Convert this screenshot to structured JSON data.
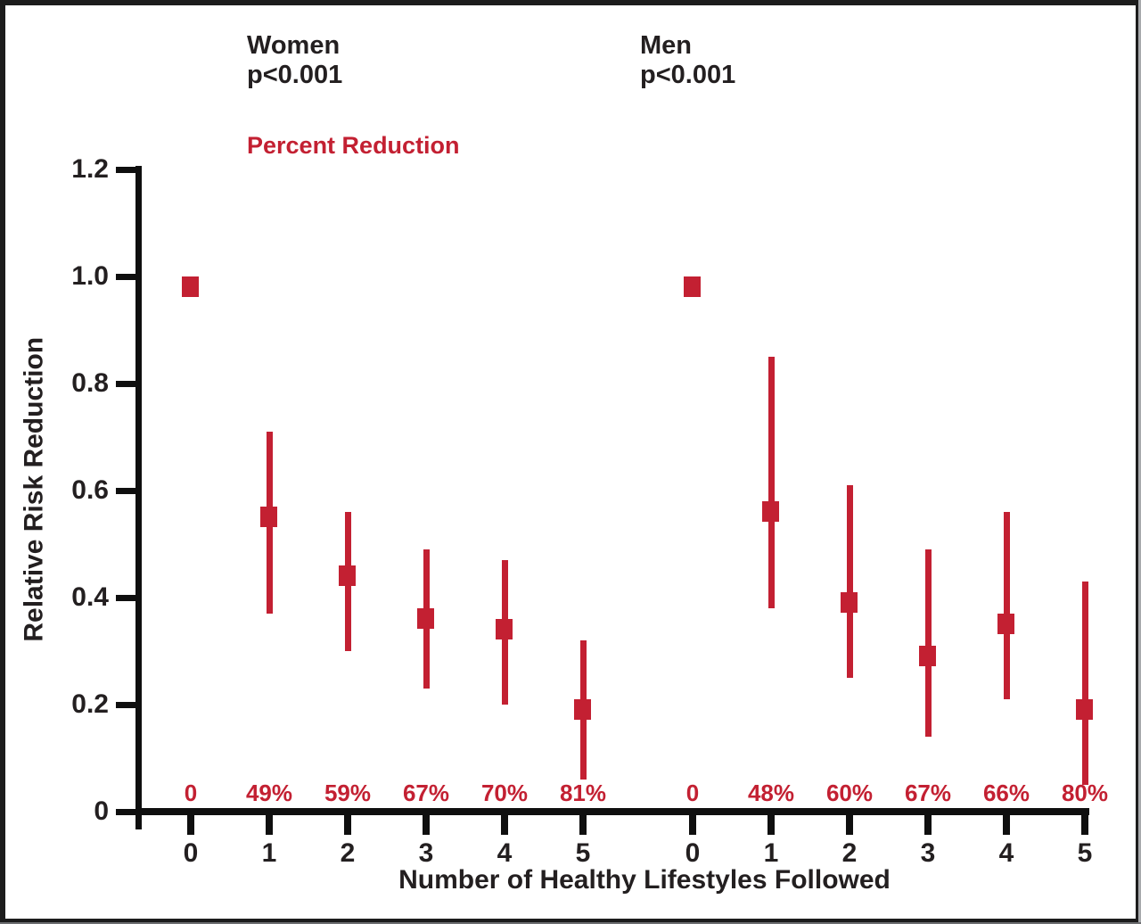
{
  "figure": {
    "women_header": "Women",
    "women_p": "p<0.001",
    "men_header": "Men",
    "men_p": "p<0.001",
    "percent_reduction_heading": "Percent Reduction"
  },
  "chart_data": {
    "type": "scatter",
    "marker": "square",
    "title": "",
    "xlabel": "Number of Healthy Lifestyles Followed",
    "ylabel": "Relative Risk Reduction",
    "ylim": [
      0,
      1.2
    ],
    "grid": false,
    "y_ticks": [
      "1.2",
      "1.0",
      "0.8",
      "0.6",
      "0.4",
      "0.2",
      "0"
    ],
    "x_categories": [
      "0",
      "1",
      "2",
      "3",
      "4",
      "5"
    ],
    "annotation_legend": "Percent Reduction",
    "groups": [
      {
        "name": "Women",
        "p_value": "p<0.001",
        "x": [
          "0",
          "1",
          "2",
          "3",
          "4",
          "5"
        ],
        "rr": [
          0.98,
          0.55,
          0.44,
          0.36,
          0.34,
          0.19
        ],
        "ci_low": [
          null,
          0.37,
          0.3,
          0.23,
          0.2,
          0.06
        ],
        "ci_high": [
          null,
          0.71,
          0.56,
          0.49,
          0.47,
          0.32
        ],
        "percent_reduction": [
          "0",
          "49%",
          "59%",
          "67%",
          "70%",
          "81%"
        ]
      },
      {
        "name": "Men",
        "p_value": "p<0.001",
        "x": [
          "0",
          "1",
          "2",
          "3",
          "4",
          "5"
        ],
        "rr": [
          0.98,
          0.56,
          0.39,
          0.29,
          0.35,
          0.19
        ],
        "ci_low": [
          null,
          0.38,
          0.25,
          0.14,
          0.21,
          0.05
        ],
        "ci_high": [
          null,
          0.85,
          0.61,
          0.49,
          0.56,
          0.43
        ],
        "percent_reduction": [
          "0",
          "48%",
          "60%",
          "67%",
          "66%",
          "80%"
        ]
      }
    ],
    "colors": {
      "marker": "#c32032",
      "text": "#231f20",
      "axis": "#0f0f0f"
    }
  }
}
